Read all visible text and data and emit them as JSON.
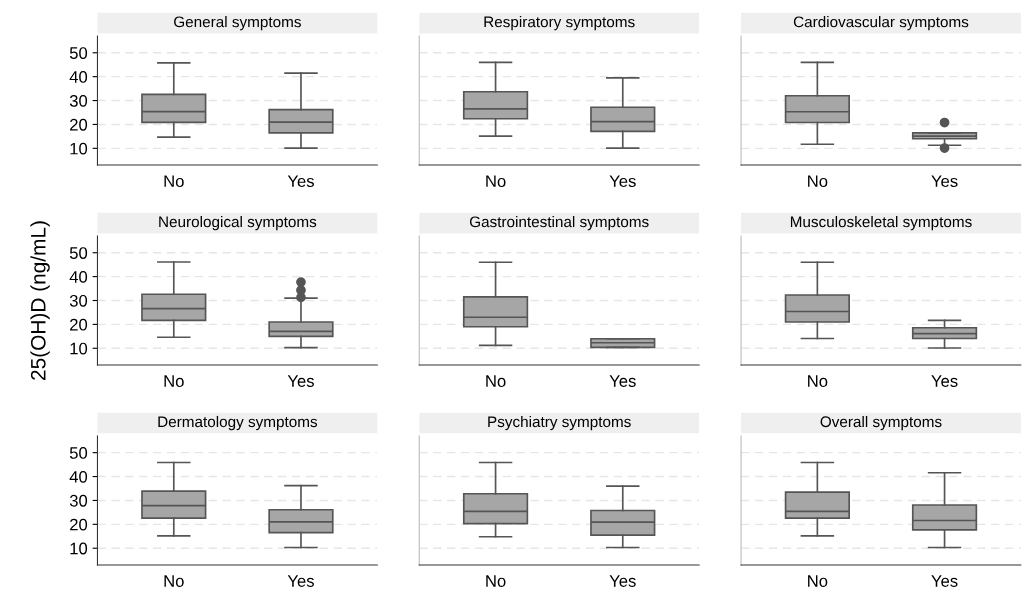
{
  "chart_data": [
    {
      "type": "box",
      "title": "General symptoms",
      "categories": [
        "No",
        "Yes"
      ],
      "ylim": [
        3,
        57
      ],
      "yticks": [
        10,
        20,
        30,
        40,
        50
      ],
      "grid": "y",
      "color": "#a6a6a6",
      "tick_labels": "xy",
      "boxes": [
        {
          "low": 14.7,
          "q1": 20.9,
          "median": 25.4,
          "q3": 32.6,
          "high": 45.8
        },
        {
          "low": 10.1,
          "q1": 16.5,
          "median": 21,
          "q3": 26.2,
          "high": 41.5
        }
      ]
    },
    {
      "type": "box",
      "title": "Respiratory symptoms",
      "categories": [
        "No",
        "Yes"
      ],
      "ylim": [
        3,
        57
      ],
      "yticks": [
        10,
        20,
        30,
        40,
        50
      ],
      "grid": "y",
      "color": "#a6a6a6",
      "tick_labels": "x",
      "boxes": [
        {
          "low": 15.1,
          "q1": 22.4,
          "median": 26.5,
          "q3": 33.7,
          "high": 46
        },
        {
          "low": 10.1,
          "q1": 17.1,
          "median": 21.2,
          "q3": 27.2,
          "high": 39.5
        }
      ]
    },
    {
      "type": "box",
      "title": "Cardiovascular symptoms",
      "categories": [
        "No",
        "Yes"
      ],
      "ylim": [
        3,
        57
      ],
      "yticks": [
        10,
        20,
        30,
        40,
        50
      ],
      "grid": "y",
      "color": "#a6a6a6",
      "tick_labels": "x",
      "boxes": [
        {
          "low": 11.7,
          "q1": 20.8,
          "median": 25.3,
          "q3": 32,
          "high": 46
        },
        {
          "low": 11.3,
          "q1": 14,
          "median": 15.1,
          "q3": 16.5,
          "high": 16.5,
          "outliers": [
            20.8,
            10.1
          ]
        }
      ]
    },
    {
      "type": "box",
      "title": "Neurological symptoms",
      "ylabel": "25(OH)D (ng/mL)",
      "categories": [
        "No",
        "Yes"
      ],
      "ylim": [
        3,
        57
      ],
      "yticks": [
        10,
        20,
        30,
        40,
        50
      ],
      "grid": "y",
      "color": "#a6a6a6",
      "tick_labels": "xy",
      "boxes": [
        {
          "low": 14.6,
          "q1": 21.7,
          "median": 26.6,
          "q3": 32.6,
          "high": 46.1
        },
        {
          "low": 10.3,
          "q1": 15,
          "median": 17.1,
          "q3": 21,
          "high": 31,
          "outliers": [
            37.7,
            34.3,
            31.3
          ]
        }
      ]
    },
    {
      "type": "box",
      "title": "Gastrointestinal symptoms",
      "categories": [
        "No",
        "Yes"
      ],
      "ylim": [
        3,
        57
      ],
      "yticks": [
        10,
        20,
        30,
        40,
        50
      ],
      "grid": "y",
      "color": "#a6a6a6",
      "tick_labels": "x",
      "boxes": [
        {
          "low": 11.2,
          "q1": 19,
          "median": 23,
          "q3": 31.5,
          "high": 46
        },
        {
          "low": 10.4,
          "q1": 10.4,
          "median": 12.3,
          "q3": 14,
          "high": 14
        }
      ]
    },
    {
      "type": "box",
      "title": "Musculoskeletal symptoms",
      "categories": [
        "No",
        "Yes"
      ],
      "ylim": [
        3,
        57
      ],
      "yticks": [
        10,
        20,
        30,
        40,
        50
      ],
      "grid": "y",
      "color": "#a6a6a6",
      "tick_labels": "x",
      "boxes": [
        {
          "low": 14.1,
          "q1": 21,
          "median": 25.4,
          "q3": 32.3,
          "high": 46
        },
        {
          "low": 10.1,
          "q1": 14.1,
          "median": 16.1,
          "q3": 18.6,
          "high": 21.7
        }
      ]
    },
    {
      "type": "box",
      "title": "Dermatology symptoms",
      "categories": [
        "No",
        "Yes"
      ],
      "ylim": [
        3,
        57
      ],
      "yticks": [
        10,
        20,
        30,
        40,
        50
      ],
      "grid": "y",
      "color": "#a6a6a6",
      "tick_labels": "xy",
      "boxes": [
        {
          "low": 15.2,
          "q1": 22.6,
          "median": 27.8,
          "q3": 33.9,
          "high": 45.9
        },
        {
          "low": 10.3,
          "q1": 16.5,
          "median": 21,
          "q3": 26.1,
          "high": 36.2
        }
      ]
    },
    {
      "type": "box",
      "title": "Psychiatry symptoms",
      "categories": [
        "No",
        "Yes"
      ],
      "ylim": [
        3,
        57
      ],
      "yticks": [
        10,
        20,
        30,
        40,
        50
      ],
      "grid": "y",
      "color": "#a6a6a6",
      "tick_labels": "x",
      "boxes": [
        {
          "low": 14.8,
          "q1": 20.3,
          "median": 25.4,
          "q3": 32.8,
          "high": 45.9
        },
        {
          "low": 10.3,
          "q1": 15.5,
          "median": 20.9,
          "q3": 25.8,
          "high": 36
        }
      ]
    },
    {
      "type": "box",
      "title": "Overall symptoms",
      "categories": [
        "No",
        "Yes"
      ],
      "ylim": [
        3,
        57
      ],
      "yticks": [
        10,
        20,
        30,
        40,
        50
      ],
      "grid": "y",
      "color": "#a6a6a6",
      "tick_labels": "x",
      "boxes": [
        {
          "low": 15.2,
          "q1": 22.6,
          "median": 25.4,
          "q3": 33.5,
          "high": 45.9
        },
        {
          "low": 10.3,
          "q1": 17.7,
          "median": 21.6,
          "q3": 28.1,
          "high": 41.6
        }
      ]
    }
  ]
}
